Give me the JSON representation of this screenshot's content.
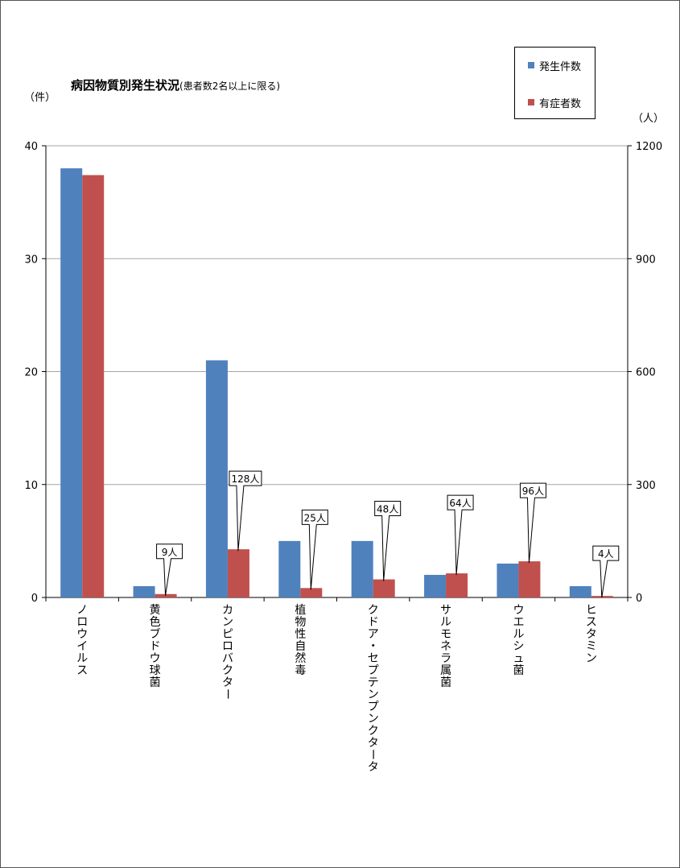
{
  "chart_data": {
    "type": "bar",
    "title": "病因物質別発生状況",
    "subtitle": "(患者数2名以上に限る)",
    "y_left_unit": "（件）",
    "y_right_unit": "（人）",
    "categories": [
      "ノロウイルス",
      "黄色ブドウ球菌",
      "カンピロバクター",
      "植物性自然毒",
      "クドア・セプテンプンクタータ",
      "サルモネラ属菌",
      "ウエルシュ菌",
      "ヒスタミン"
    ],
    "series": [
      {
        "name": "発生件数",
        "axis": "left",
        "color": "#4F81BD",
        "values": [
          38,
          1,
          21,
          5,
          5,
          2,
          3,
          1
        ]
      },
      {
        "name": "有症者数",
        "axis": "right",
        "color": "#C0504D",
        "values": [
          1122,
          9,
          128,
          25,
          48,
          64,
          96,
          4
        ]
      }
    ],
    "y_left": {
      "min": 0,
      "max": 40,
      "ticks": [
        "0",
        "10",
        "20",
        "30",
        "40"
      ]
    },
    "y_right": {
      "min": 0,
      "max": 1200,
      "ticks": [
        "0",
        "300",
        "600",
        "900",
        "1200"
      ]
    },
    "callouts": [
      {
        "category_index": 1,
        "text": "9人"
      },
      {
        "category_index": 2,
        "text": "128人"
      },
      {
        "category_index": 3,
        "text": "25人"
      },
      {
        "category_index": 4,
        "text": "48人"
      },
      {
        "category_index": 5,
        "text": "64人"
      },
      {
        "category_index": 6,
        "text": "96人"
      },
      {
        "category_index": 7,
        "text": "4人"
      }
    ],
    "grid": true,
    "legend_position": "top-right"
  }
}
